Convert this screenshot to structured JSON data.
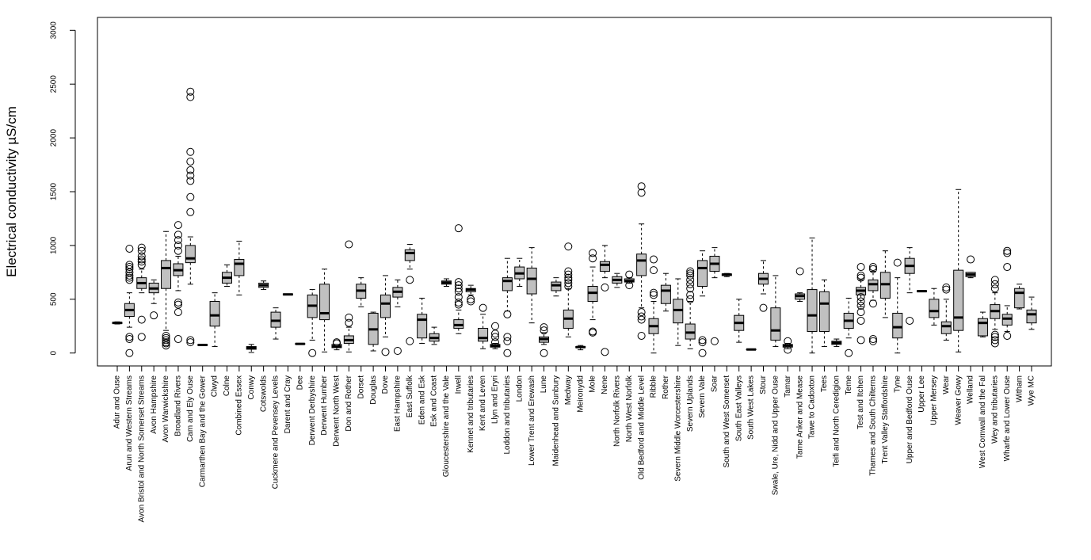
{
  "chart_data": {
    "type": "box",
    "ylabel": "Electrical conductivity µS/cm",
    "ylim": [
      -120,
      3120
    ],
    "yticks": [
      0,
      500,
      1000,
      1500,
      2000,
      2500,
      3000
    ],
    "color": "#c0c0c0",
    "categories": [
      "Adur and Ouse",
      "Arun and Western Streams",
      "Avon Bristol and North Somerset Streams",
      "Avon Hampshire",
      "Avon Warwickshire",
      "Broadland Rivers",
      "Cam and Ely Ouse",
      "Carmarthen Bay and the Gower",
      "Clwyd",
      "Colne",
      "Combined Essex",
      "Conwy",
      "Cotswolds",
      "Cuckmere and Pevensey Levels",
      "Darent and Cray",
      "Dee",
      "Derwent Derbyshire",
      "Derwent Humber",
      "Derwent North West",
      "Don and Rother",
      "Dorset",
      "Douglas",
      "Dove",
      "East Hampshire",
      "East Suffolk",
      "Eden and Esk",
      "Esk and Coast",
      "Gloucestershire and the Vale",
      "Irwell",
      "Kennet and tributaries",
      "Kent and Leven",
      "Llyn and Eryri",
      "Loddon and tributaries",
      "London",
      "Lower Trent and Erewash",
      "Lune",
      "Maidenhead and Sunbury",
      "Medway",
      "Meironydd",
      "Mole",
      "Nene",
      "North Norfolk Rivers",
      "North West Norfolk",
      "Old Bedford and Middle Level",
      "Ribble",
      "Rother",
      "Severn Middle Worcestershire",
      "Severn Uplands",
      "Severn Vale",
      "Soar",
      "South and West Somerset",
      "South East Valleys",
      "South West Lakes",
      "Stour",
      "Swale, Ure, Nidd and Upper Ouse",
      "Tamar",
      "Tame Anker and Mease",
      "Tawe to Cadoxton",
      "Tees",
      "Teifi and North Ceredigion",
      "Teme",
      "Test and Itchen",
      "Thames and South Chilterns",
      "Trent Valley Staffordshire",
      "Tyne",
      "Upper and Bedford Ouse",
      "Upper Lee",
      "Upper Mersey",
      "Wear",
      "Weaver Gowy",
      "Welland",
      "West Cornwall and the Fal",
      "Wey and tributaries",
      "Wharfe and Lower Ouse",
      "Witham",
      "Wye MC"
    ],
    "whisker_low": [
      270,
      240,
      560,
      460,
      210,
      580,
      640,
      70,
      60,
      620,
      540,
      5,
      590,
      130,
      540,
      80,
      120,
      10,
      30,
      10,
      430,
      20,
      150,
      430,
      780,
      90,
      80,
      620,
      180,
      540,
      40,
      40,
      390,
      620,
      280,
      80,
      530,
      150,
      30,
      310,
      700,
      610,
      650,
      420,
      0,
      390,
      70,
      40,
      530,
      700,
      710,
      100,
      30,
      550,
      60,
      40,
      480,
      0,
      60,
      60,
      140,
      430,
      490,
      330,
      0,
      560,
      570,
      260,
      120,
      10,
      700,
      150,
      220,
      200,
      410,
      220
    ],
    "q1": [
      275,
      340,
      600,
      560,
      600,
      720,
      840,
      72,
      250,
      650,
      720,
      35,
      610,
      240,
      540,
      82,
      330,
      310,
      50,
      90,
      510,
      80,
      330,
      520,
      860,
      140,
      110,
      640,
      230,
      570,
      110,
      55,
      580,
      690,
      550,
      100,
      580,
      230,
      50,
      480,
      760,
      650,
      660,
      720,
      180,
      460,
      280,
      130,
      620,
      760,
      720,
      210,
      31,
      640,
      120,
      55,
      500,
      200,
      200,
      80,
      230,
      540,
      580,
      510,
      140,
      740,
      570,
      330,
      180,
      210,
      710,
      160,
      320,
      260,
      420,
      280
    ],
    "median": [
      280,
      400,
      650,
      600,
      790,
      770,
      880,
      75,
      350,
      700,
      830,
      50,
      630,
      300,
      545,
      85,
      440,
      370,
      60,
      120,
      580,
      220,
      460,
      570,
      930,
      310,
      140,
      655,
      260,
      590,
      140,
      65,
      670,
      740,
      690,
      130,
      630,
      320,
      55,
      560,
      820,
      680,
      670,
      860,
      250,
      580,
      400,
      190,
      790,
      830,
      730,
      280,
      33,
      690,
      210,
      70,
      530,
      350,
      460,
      95,
      300,
      580,
      640,
      640,
      240,
      810,
      575,
      390,
      250,
      330,
      730,
      280,
      390,
      320,
      560,
      360
    ],
    "q3": [
      285,
      460,
      700,
      650,
      860,
      830,
      1000,
      78,
      480,
      750,
      870,
      60,
      650,
      380,
      550,
      88,
      540,
      640,
      80,
      160,
      640,
      370,
      540,
      610,
      960,
      360,
      180,
      670,
      310,
      600,
      230,
      80,
      700,
      800,
      790,
      150,
      660,
      400,
      60,
      620,
      850,
      710,
      690,
      920,
      320,
      630,
      500,
      270,
      860,
      900,
      735,
      350,
      35,
      740,
      420,
      80,
      550,
      590,
      570,
      110,
      370,
      610,
      680,
      750,
      370,
      880,
      580,
      500,
      290,
      770,
      750,
      320,
      450,
      360,
      600,
      400
    ],
    "whisker_high": [
      290,
      560,
      780,
      680,
      1130,
      900,
      1080,
      82,
      560,
      820,
      1040,
      80,
      670,
      420,
      550,
      90,
      590,
      780,
      70,
      240,
      700,
      380,
      720,
      680,
      1010,
      510,
      240,
      690,
      400,
      630,
      360,
      90,
      880,
      880,
      980,
      190,
      700,
      600,
      70,
      800,
      1000,
      740,
      700,
      1200,
      480,
      740,
      690,
      480,
      950,
      980,
      740,
      500,
      36,
      860,
      720,
      90,
      560,
      1070,
      680,
      130,
      510,
      680,
      760,
      950,
      700,
      980,
      580,
      600,
      500,
      1520,
      750,
      380,
      560,
      440,
      640,
      520
    ],
    "outliers": [
      [],
      [
        0,
        130,
        150,
        680,
        700,
        720,
        750,
        780,
        800,
        820,
        970
      ],
      [
        150,
        310,
        820,
        850,
        870,
        900,
        950,
        980
      ],
      [
        350
      ],
      [
        70,
        90,
        100,
        120,
        140,
        160
      ],
      [
        130,
        380,
        450,
        470,
        950,
        1000,
        1050,
        1100,
        1190
      ],
      [
        100,
        120,
        1310,
        1450,
        1600,
        1650,
        1700,
        1780,
        1870,
        2380,
        2430
      ],
      [],
      [],
      [],
      [],
      [],
      [],
      [],
      [],
      [],
      [
        0
      ],
      [],
      [
        90,
        100
      ],
      [
        280,
        330,
        1010
      ],
      [],
      [],
      [
        10
      ],
      [
        20
      ],
      [
        110,
        680
      ],
      [],
      [],
      [],
      [
        450,
        470,
        520,
        570,
        600,
        630,
        660,
        1160
      ],
      [
        480,
        500
      ],
      [
        420
      ],
      [
        100,
        150,
        180,
        250
      ],
      [
        0,
        110,
        150,
        360
      ],
      [],
      [],
      [
        0,
        210,
        240
      ],
      [],
      [
        620,
        650,
        680,
        700,
        730,
        760,
        990
      ],
      [],
      [
        190,
        200,
        880,
        930
      ],
      [
        10,
        610
      ],
      [],
      [
        630,
        730
      ],
      [
        160,
        310,
        340,
        380,
        1490,
        1550
      ],
      [
        540,
        560,
        770,
        870
      ],
      [],
      [],
      [
        500,
        540,
        600,
        640,
        680,
        720,
        740,
        760
      ],
      [
        0,
        100,
        120
      ],
      [
        110
      ],
      [],
      [],
      [],
      [
        420
      ],
      [],
      [
        30,
        110
      ],
      [
        760
      ],
      [],
      [],
      [],
      [
        0
      ],
      [
        120,
        300,
        380,
        440,
        480,
        520,
        700,
        720,
        800
      ],
      [
        110,
        130,
        460,
        780,
        800
      ],
      [],
      [
        840
      ],
      [
        300
      ],
      [],
      [],
      [
        590,
        610
      ],
      [],
      [
        870
      ],
      [],
      [
        90,
        120,
        150,
        170,
        600,
        640,
        680
      ],
      [
        160,
        800,
        930,
        950
      ],
      [],
      []
    ]
  }
}
